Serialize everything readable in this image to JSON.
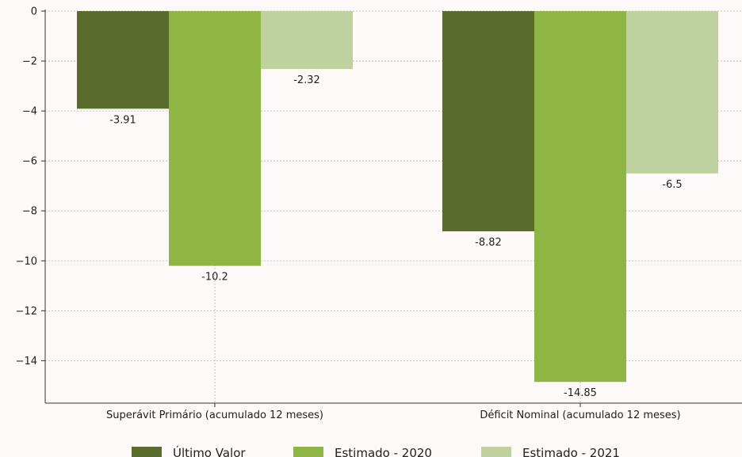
{
  "chart_data": {
    "type": "bar",
    "categories": [
      "Superávit Primário (acumulado 12 meses)",
      "Déficit Nominal (acumulado 12 meses)"
    ],
    "series": [
      {
        "name": "Último Valor",
        "values": [
          -3.91,
          -8.82
        ],
        "labels": [
          "-3.91",
          "-8.82"
        ],
        "color": "#5a6b2e"
      },
      {
        "name": "Estimado - 2020",
        "values": [
          -10.2,
          -14.85
        ],
        "labels": [
          "-10.2",
          "-14.85"
        ],
        "color": "#8fb544"
      },
      {
        "name": "Estimado - 2021",
        "values": [
          -2.32,
          -6.5
        ],
        "labels": [
          "-2.32",
          "-6.5"
        ],
        "color": "#bfd19f"
      }
    ],
    "yticks": [
      "0",
      "−2",
      "−4",
      "−6",
      "−8",
      "−10",
      "−12",
      "−14"
    ],
    "ylim": [
      -15.7,
      0
    ],
    "grid": true,
    "legend_position": "bottom",
    "colors": {
      "background": "#fdf9f8",
      "grid": "#b5b5b5",
      "axis": "#333333"
    }
  }
}
